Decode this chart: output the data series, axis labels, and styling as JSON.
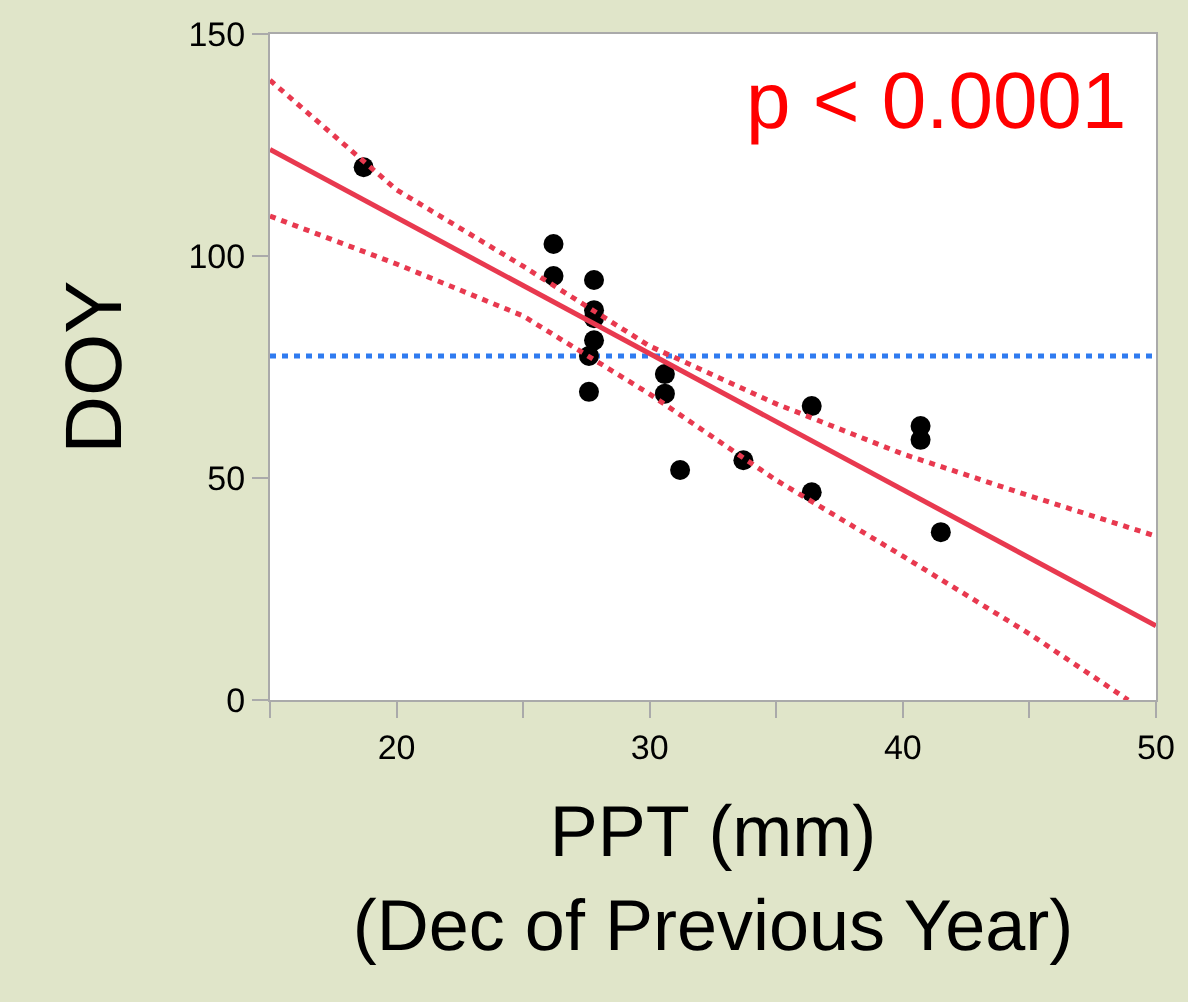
{
  "chart_data": {
    "type": "scatter",
    "xlabel": "PPT (mm)\n(Dec of Previous Year)",
    "ylabel": "DOY",
    "annotations": [
      "p < 0.0001"
    ],
    "xlim": [
      15,
      50
    ],
    "ylim": [
      0,
      150
    ],
    "xticks": [
      {
        "value": 15,
        "label": null
      },
      20,
      {
        "value": 25,
        "label": null
      },
      30,
      {
        "value": 35,
        "label": null
      },
      40,
      {
        "value": 45,
        "label": null
      },
      50
    ],
    "yticks": [
      0,
      50,
      100,
      150
    ],
    "grid": false,
    "marker": "circle",
    "ref_lines": [
      {
        "axis": "y",
        "value": 77.5,
        "color": "#2f7bf0",
        "line_style": "dotted"
      }
    ],
    "series": [
      {
        "color": "#000000",
        "x": [
          18.7,
          26.2,
          26.2,
          27.8,
          27.8,
          27.8,
          27.8,
          27.6,
          27.6,
          30.6,
          30.6,
          31.2,
          33.7,
          36.4,
          36.4,
          40.7,
          40.7,
          41.5
        ],
        "values": [
          120,
          102.7,
          95.5,
          94.6,
          87.8,
          86,
          81,
          77.5,
          69.4,
          73.4,
          69,
          51.8,
          54,
          66.2,
          46.8,
          61.7,
          58.6,
          37.8
        ]
      },
      {
        "type": "line",
        "color": "#e8394f",
        "line_style": "solid",
        "marker": "none",
        "x": [
          15,
          50
        ],
        "values": [
          124,
          16.7
        ]
      },
      {
        "type": "line",
        "color": "#e8394f",
        "line_style": "dotted",
        "marker": "none",
        "x": [
          15,
          20,
          25,
          30,
          35,
          40,
          45,
          50
        ],
        "values": [
          139.6,
          114.9,
          97.7,
          79.7,
          66.7,
          55.4,
          46,
          36.9
        ]
      },
      {
        "type": "line",
        "color": "#e8394f",
        "line_style": "dotted",
        "marker": "none",
        "x": [
          15,
          20,
          25,
          30,
          35,
          40,
          45,
          48.9
        ],
        "values": [
          109,
          98.2,
          86.5,
          68.9,
          49.5,
          32.4,
          14.9,
          0
        ]
      }
    ]
  }
}
